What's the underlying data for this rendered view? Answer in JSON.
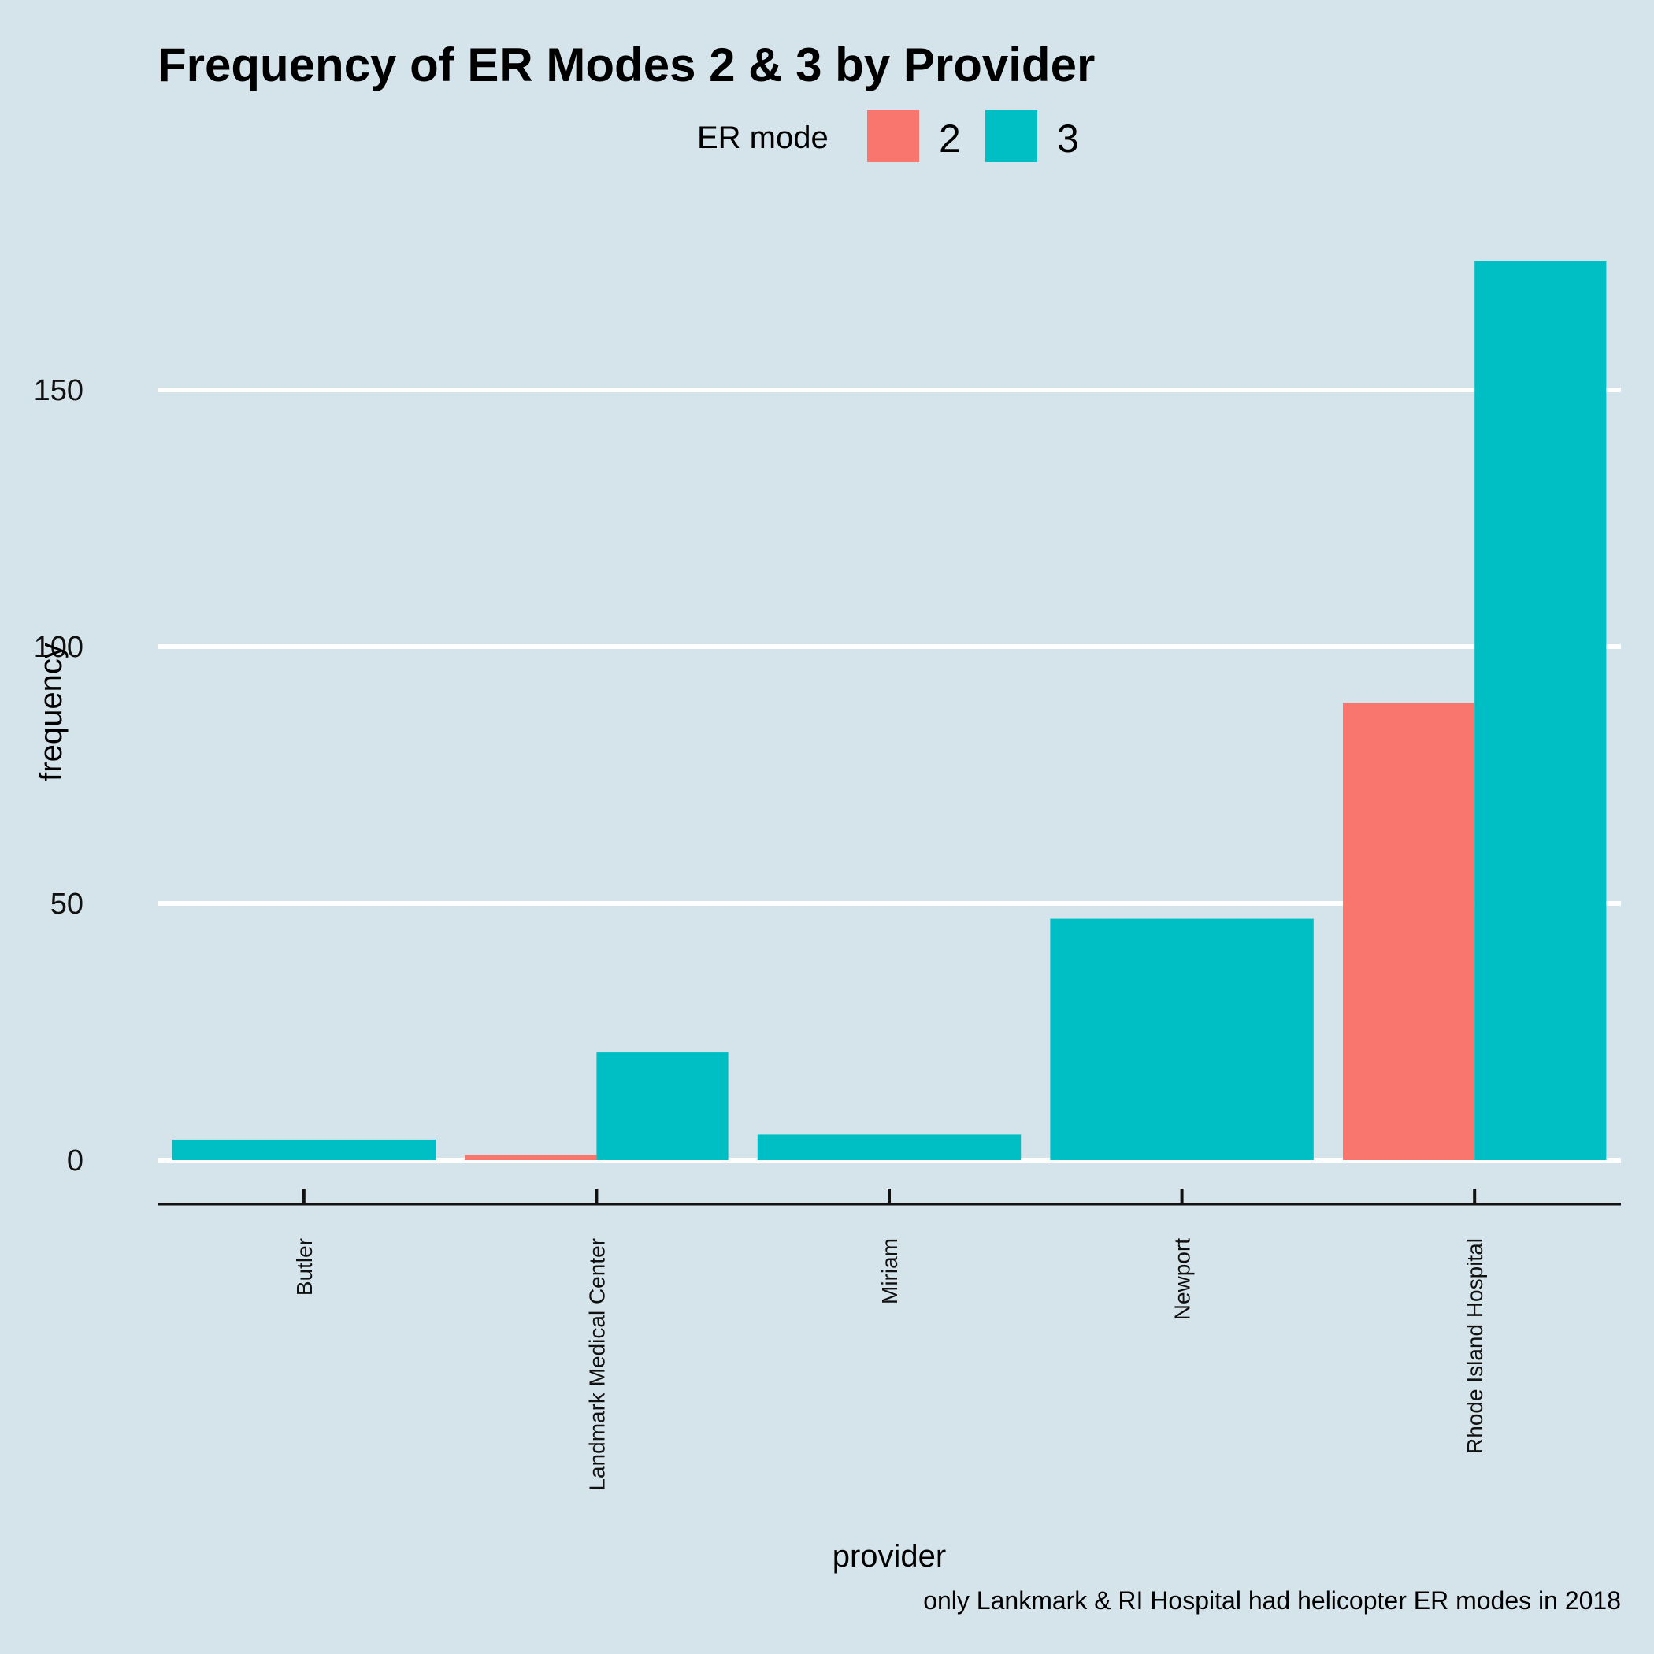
{
  "chart_data": {
    "type": "bar",
    "title": "Frequency of ER Modes 2 & 3 by Provider",
    "xlabel": "provider",
    "ylabel": "frequency",
    "caption": "only Lankmark & RI Hospital had helicopter ER modes in 2018",
    "legend": {
      "title": "ER mode",
      "position": "top"
    },
    "categories": [
      "Butler",
      "Landmark Medical Center",
      "Miriam",
      "Newport",
      "Rhode Island Hospital"
    ],
    "series": [
      {
        "name": "2",
        "color": "#f8766d",
        "values": [
          0,
          1,
          0,
          0,
          89
        ]
      },
      {
        "name": "3",
        "color": "#00bfc4",
        "values": [
          4,
          21,
          5,
          47,
          175
        ]
      }
    ],
    "yticks": [
      0,
      50,
      100,
      150
    ],
    "ylim": [
      0,
      180
    ],
    "grid": "horizontal major lines"
  }
}
